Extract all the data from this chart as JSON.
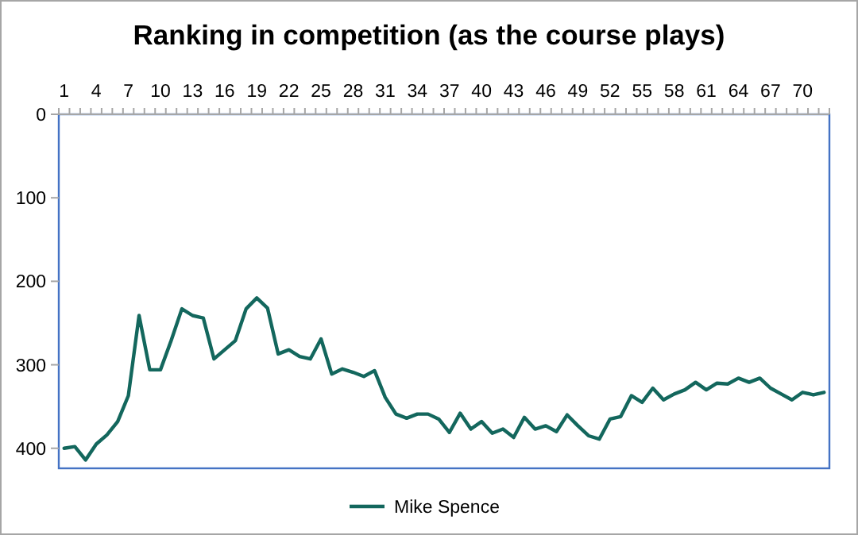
{
  "chart_data": {
    "type": "line",
    "title": "Ranking in competition (as the course plays)",
    "categories": [
      "1",
      null,
      null,
      "4",
      null,
      null,
      "7",
      null,
      null,
      "10",
      null,
      null,
      "13",
      null,
      null,
      "16",
      null,
      null,
      "19",
      null,
      null,
      "22",
      null,
      null,
      "25",
      null,
      null,
      "28",
      null,
      null,
      "31",
      null,
      null,
      "34",
      null,
      null,
      "37",
      null,
      null,
      "40",
      null,
      null,
      "43",
      null,
      null,
      "46",
      null,
      null,
      "49",
      null,
      null,
      "52",
      null,
      null,
      "55",
      null,
      null,
      "58",
      null,
      null,
      "61",
      null,
      null,
      "64",
      null,
      null,
      "67",
      null,
      null,
      "70",
      null,
      null
    ],
    "series": [
      {
        "name": "Mike Spence",
        "color": "#13675d",
        "values": [
          400,
          398,
          414,
          395,
          384,
          368,
          337,
          241,
          306,
          306,
          271,
          233,
          241,
          244,
          293,
          282,
          271,
          233,
          220,
          232,
          287,
          282,
          290,
          293,
          269,
          311,
          305,
          309,
          314,
          307,
          339,
          359,
          364,
          359,
          359,
          365,
          381,
          358,
          377,
          368,
          382,
          377,
          387,
          363,
          377,
          373,
          380,
          360,
          373,
          385,
          389,
          365,
          362,
          337,
          345,
          328,
          342,
          335,
          330,
          321,
          330,
          322,
          323,
          316,
          321,
          316,
          328,
          335,
          342,
          333,
          336,
          333
        ]
      }
    ],
    "ylim": [
      424,
      0
    ],
    "yticks": [
      0,
      100,
      200,
      300,
      400
    ],
    "grid": false,
    "legend": "bottom",
    "marker": "none",
    "line_style": "solid"
  }
}
